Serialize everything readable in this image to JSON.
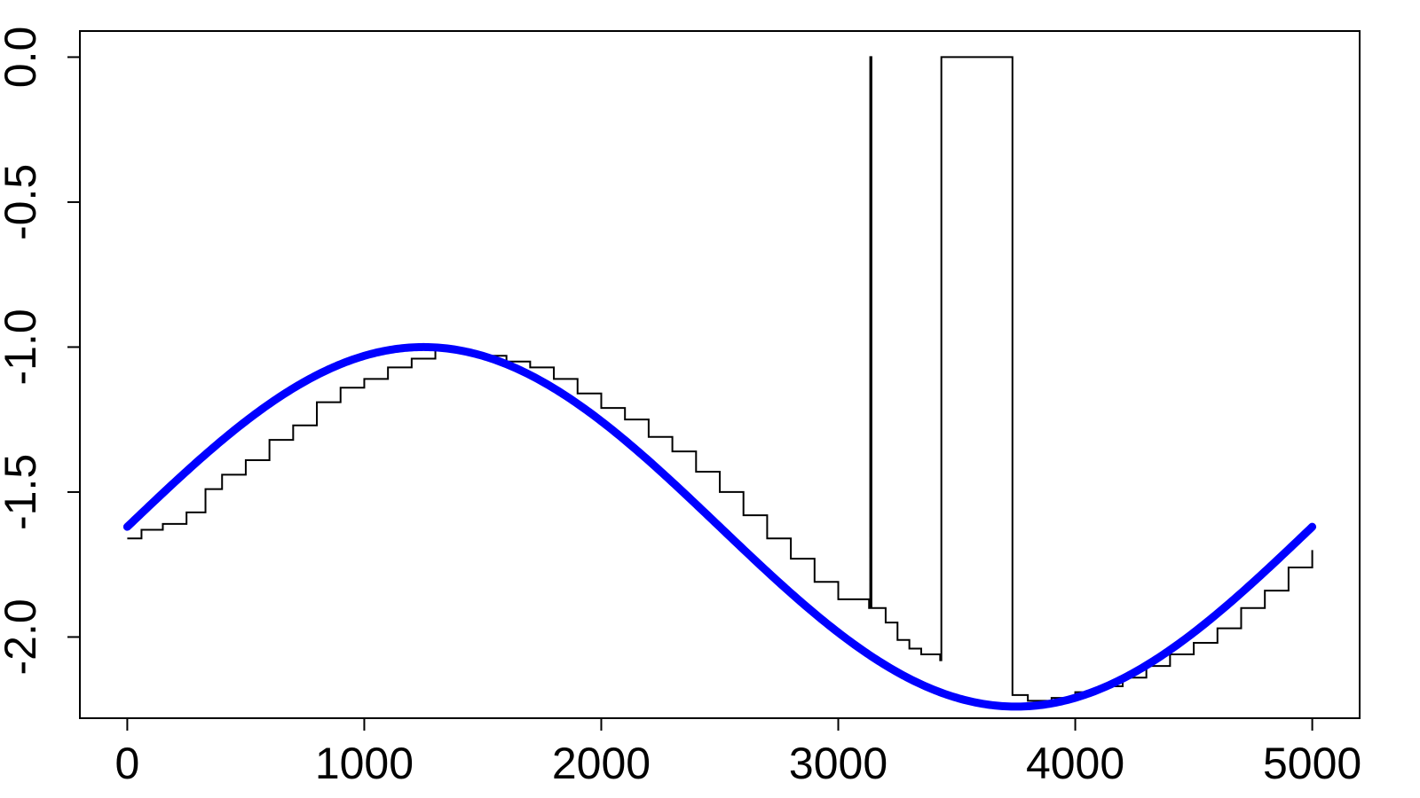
{
  "chart_data": {
    "type": "line",
    "title": "",
    "xlabel": "",
    "ylabel": "",
    "xlim": [
      -200,
      5200
    ],
    "ylim": [
      -2.28,
      0.09
    ],
    "x_ticks": [
      0,
      1000,
      2000,
      3000,
      4000,
      5000
    ],
    "x_tick_labels": [
      "0",
      "1000",
      "2000",
      "3000",
      "4000",
      "5000"
    ],
    "y_ticks": [
      0.0,
      -0.5,
      -1.0,
      -1.5,
      -2.0
    ],
    "y_tick_labels": [
      "0.0",
      "-0.5",
      "-1.0",
      "-1.5",
      "-2.0"
    ],
    "grid": false,
    "legend": false,
    "series": [
      {
        "role": "estimate",
        "color": "#000000",
        "step": true,
        "points": [
          [
            0,
            -1.66
          ],
          [
            60,
            -1.63
          ],
          [
            150,
            -1.61
          ],
          [
            250,
            -1.57
          ],
          [
            330,
            -1.49
          ],
          [
            400,
            -1.44
          ],
          [
            500,
            -1.39
          ],
          [
            600,
            -1.32
          ],
          [
            700,
            -1.27
          ],
          [
            800,
            -1.19
          ],
          [
            900,
            -1.14
          ],
          [
            1000,
            -1.11
          ],
          [
            1100,
            -1.07
          ],
          [
            1200,
            -1.04
          ],
          [
            1300,
            -1.01
          ],
          [
            1400,
            -1.02
          ],
          [
            1500,
            -1.03
          ],
          [
            1600,
            -1.05
          ],
          [
            1700,
            -1.07
          ],
          [
            1800,
            -1.11
          ],
          [
            1900,
            -1.16
          ],
          [
            2000,
            -1.21
          ],
          [
            2100,
            -1.25
          ],
          [
            2200,
            -1.31
          ],
          [
            2300,
            -1.36
          ],
          [
            2400,
            -1.43
          ],
          [
            2500,
            -1.5
          ],
          [
            2600,
            -1.58
          ],
          [
            2700,
            -1.66
          ],
          [
            2800,
            -1.73
          ],
          [
            2900,
            -1.81
          ],
          [
            3000,
            -1.87
          ],
          [
            3130,
            -1.9
          ],
          [
            3135,
            0.0
          ],
          [
            3140,
            -1.9
          ],
          [
            3200,
            -1.95
          ],
          [
            3250,
            -2.01
          ],
          [
            3300,
            -2.04
          ],
          [
            3350,
            -2.06
          ],
          [
            3430,
            -2.08
          ],
          [
            3435,
            0.0
          ],
          [
            3730,
            0.0
          ],
          [
            3735,
            -2.2
          ],
          [
            3800,
            -2.22
          ],
          [
            3900,
            -2.21
          ],
          [
            4000,
            -2.19
          ],
          [
            4100,
            -2.17
          ],
          [
            4200,
            -2.14
          ],
          [
            4300,
            -2.1
          ],
          [
            4400,
            -2.06
          ],
          [
            4500,
            -2.02
          ],
          [
            4600,
            -1.97
          ],
          [
            4700,
            -1.9
          ],
          [
            4800,
            -1.84
          ],
          [
            4900,
            -1.76
          ],
          [
            5000,
            -1.7
          ]
        ]
      },
      {
        "role": "true-curve",
        "color": "#0000ff",
        "formula": "y = -1.62 + 0.62*sin(2*pi*x/5000)",
        "x_range": [
          0,
          5000
        ]
      }
    ]
  }
}
